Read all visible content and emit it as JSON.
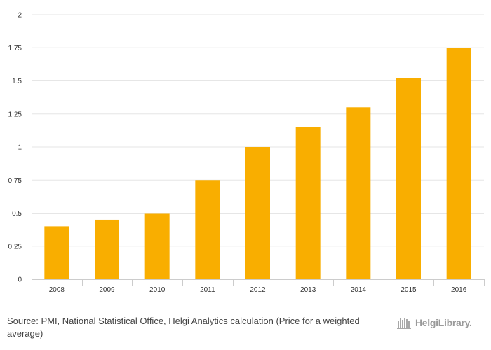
{
  "chart_data": {
    "type": "bar",
    "categories": [
      "2008",
      "2009",
      "2010",
      "2011",
      "2012",
      "2013",
      "2014",
      "2015",
      "2016"
    ],
    "values": [
      0.4,
      0.45,
      0.5,
      0.75,
      1.0,
      1.15,
      1.3,
      1.52,
      1.75
    ],
    "ylim": [
      0,
      2
    ],
    "yticks": [
      0,
      0.25,
      0.5,
      0.75,
      1,
      1.25,
      1.5,
      1.75,
      2
    ],
    "ytick_labels": [
      "0",
      "0.25",
      "0.5",
      "0.75",
      "1",
      "1.25",
      "1.5",
      "1.75",
      "2"
    ],
    "grid": true,
    "bar_color": "#f9ae00",
    "grid_color": "#e6e6e6"
  },
  "footer": {
    "source_label": "Source:",
    "source_text": "PMI, National Statistical Office, Helgi Analytics calculation (Price for a weighted average)",
    "brand_text": "HelgiLibrary.",
    "brand_icon": "library-icon"
  }
}
